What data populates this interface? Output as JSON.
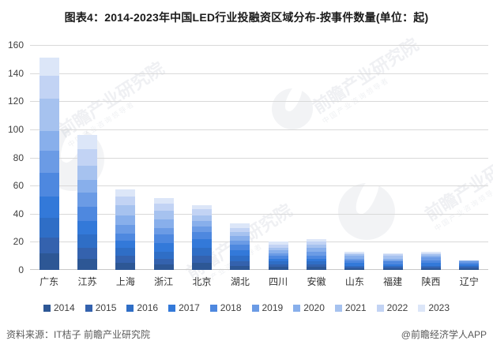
{
  "title": "图表4：2014-2023年中国LED行业投融资区域分布-按事件数量(单位：起)",
  "footer": {
    "source": "资料来源：IT桔子 前瞻产业研究院",
    "attribution": "@前瞻经济学人APP"
  },
  "watermark": {
    "text": "前瞻产业研究院",
    "subtext": "中国产业咨询领导者",
    "logo_name": "qianzhan-logo"
  },
  "colors": {
    "grid": "#d9d9d9",
    "axis_text": "#404040",
    "category_text": "#333333",
    "footer_text": "#595959",
    "background": "#ffffff"
  },
  "chart_data": {
    "type": "bar",
    "stacked": true,
    "title": "图表4：2014-2023年中国LED行业投融资区域分布-按事件数量(单位：起)",
    "unit": "起",
    "xlabel": "",
    "ylabel": "",
    "ylim": [
      0,
      160
    ],
    "yticks": [
      0,
      20,
      40,
      60,
      80,
      100,
      120,
      140,
      160
    ],
    "grid": true,
    "legend_position": "bottom",
    "categories": [
      "广东",
      "江苏",
      "上海",
      "浙江",
      "北京",
      "湖北",
      "四川",
      "安徽",
      "山东",
      "福建",
      "陕西",
      "辽宁"
    ],
    "totals_approx": [
      151,
      96,
      57,
      51,
      46,
      33,
      20,
      22,
      13,
      12,
      13,
      7
    ],
    "series": [
      {
        "name": "2014",
        "color": "#2d5795",
        "values": [
          12,
          8,
          5,
          4,
          5,
          3,
          2,
          2,
          1,
          1,
          1,
          1
        ]
      },
      {
        "name": "2015",
        "color": "#3462ae",
        "values": [
          11,
          8,
          5,
          4,
          5,
          3,
          2,
          2,
          1,
          1,
          1,
          1
        ]
      },
      {
        "name": "2016",
        "color": "#2f6ec6",
        "values": [
          14,
          9,
          6,
          5,
          6,
          4,
          2,
          2,
          1,
          1,
          1,
          1
        ]
      },
      {
        "name": "2017",
        "color": "#3379d9",
        "values": [
          15,
          10,
          5,
          6,
          6,
          4,
          2,
          2,
          2,
          1,
          2,
          1
        ]
      },
      {
        "name": "2018",
        "color": "#4e88df",
        "values": [
          17,
          10,
          5,
          6,
          5,
          4,
          2,
          2,
          2,
          2,
          2,
          1
        ]
      },
      {
        "name": "2019",
        "color": "#6b9be5",
        "values": [
          16,
          10,
          6,
          5,
          4,
          3,
          2,
          3,
          1,
          1,
          2,
          1
        ]
      },
      {
        "name": "2020",
        "color": "#88afeb",
        "values": [
          14,
          9,
          7,
          6,
          4,
          3,
          2,
          3,
          2,
          1,
          1,
          1
        ]
      },
      {
        "name": "2021",
        "color": "#a6c2ef",
        "values": [
          23,
          10,
          7,
          6,
          4,
          3,
          2,
          2,
          1,
          2,
          1,
          0
        ]
      },
      {
        "name": "2022",
        "color": "#c2d3f4",
        "values": [
          16,
          12,
          6,
          5,
          4,
          3,
          2,
          2,
          1,
          1,
          1,
          0
        ]
      },
      {
        "name": "2023",
        "color": "#dce6f8",
        "values": [
          13,
          10,
          5,
          4,
          3,
          3,
          2,
          2,
          1,
          1,
          1,
          0
        ]
      }
    ]
  }
}
